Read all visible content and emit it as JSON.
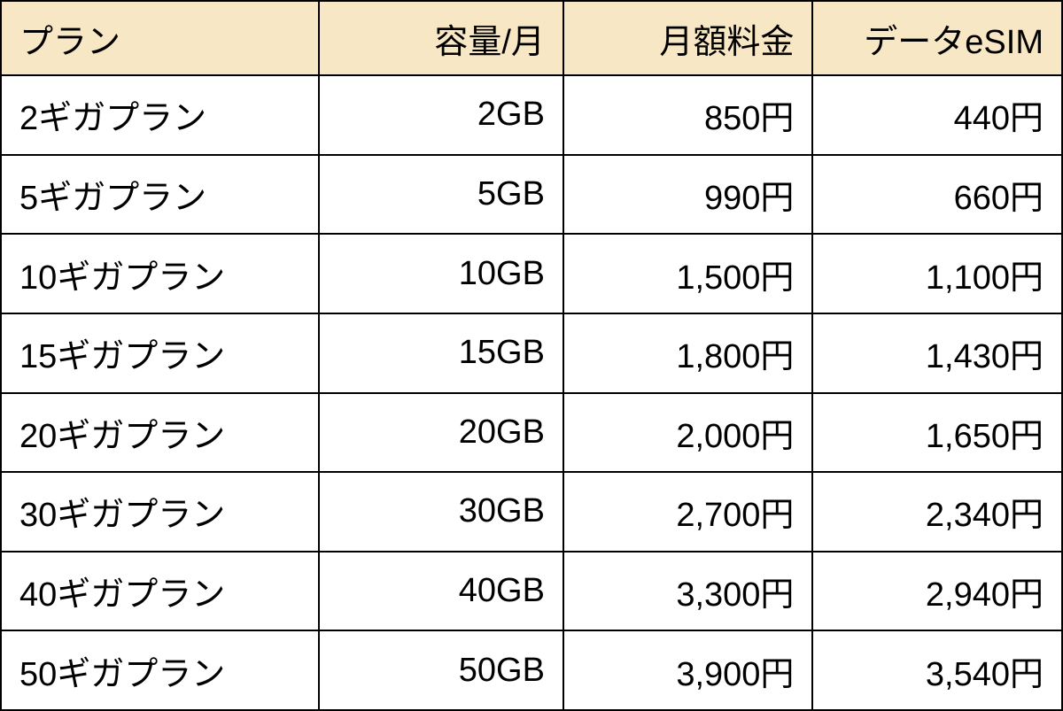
{
  "table": {
    "type": "table",
    "header_bg_color": "#f8e7c4",
    "cell_bg_color": "#ffffff",
    "border_color": "#000000",
    "border_width": 2,
    "text_color": "#000000",
    "font_size": 38,
    "columns": [
      {
        "label": "プラン",
        "align_header": "center",
        "align_body": "left",
        "width_pct": 30
      },
      {
        "label": "容量/月",
        "align_header": "center",
        "align_body": "right",
        "width_pct": 23
      },
      {
        "label": "月額料金",
        "align_header": "center",
        "align_body": "right",
        "width_pct": 23.5
      },
      {
        "label": "データeSIM",
        "align_header": "center",
        "align_body": "right",
        "width_pct": 23.5
      }
    ],
    "rows": [
      {
        "plan": "2ギガプラン",
        "capacity": "2GB",
        "price": "850円",
        "esim": "440円"
      },
      {
        "plan": "5ギガプラン",
        "capacity": "5GB",
        "price": "990円",
        "esim": "660円"
      },
      {
        "plan": "10ギガプラン",
        "capacity": "10GB",
        "price": "1,500円",
        "esim": "1,100円"
      },
      {
        "plan": "15ギガプラン",
        "capacity": "15GB",
        "price": "1,800円",
        "esim": "1,430円"
      },
      {
        "plan": "20ギガプラン",
        "capacity": "20GB",
        "price": "2,000円",
        "esim": "1,650円"
      },
      {
        "plan": "30ギガプラン",
        "capacity": "30GB",
        "price": "2,700円",
        "esim": "2,340円"
      },
      {
        "plan": "40ギガプラン",
        "capacity": "40GB",
        "price": "3,300円",
        "esim": "2,940円"
      },
      {
        "plan": "50ギガプラン",
        "capacity": "50GB",
        "price": "3,900円",
        "esim": "3,540円"
      }
    ]
  }
}
